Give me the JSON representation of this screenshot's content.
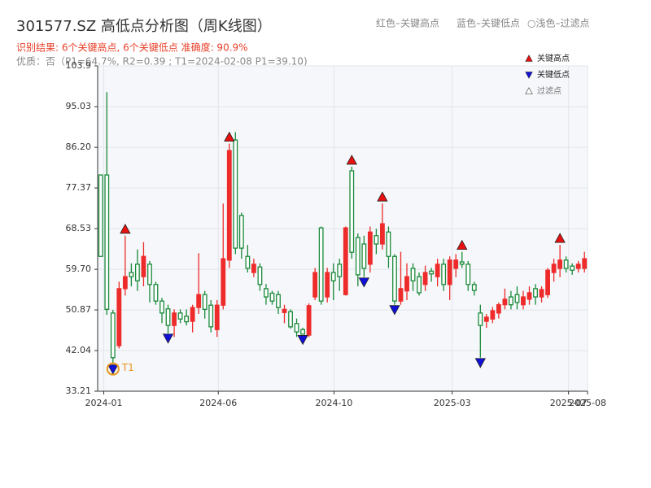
{
  "chart_data": {
    "type": "candlestick",
    "title": "301577.SZ 高低点分析图（周K线图）",
    "header_notes": [
      "红色–关键高点",
      "蓝色–关键低点",
      "○浅色–过滤点"
    ],
    "subtitle": "识别结果: 6个关键高点, 6个关键低点  准确度: 90.9%",
    "quality_note": "优质：否（P1=64.7%, R2=0.39 ; T1=2024-02-08 P1=39.10)",
    "legend": [
      "关键高点",
      "关键低点",
      "过滤点"
    ],
    "t1_label": "T1",
    "t1_index": 2,
    "up_color": "#ee2b2b",
    "down_color": "#1a8a3a",
    "high_marker_color": "#e81010",
    "low_marker_color": "#1010d8",
    "t1_color": "#e8951c",
    "open": [
      80.2,
      80.2,
      50.2,
      43.1,
      55.5,
      59.0,
      60.8,
      58.1,
      60.8,
      56.4,
      52.8,
      51.1,
      47.5,
      50.2,
      49.5,
      48.4,
      51.4,
      54.2,
      51.9,
      46.6,
      51.9,
      61.7,
      87.8,
      71.4,
      62.5,
      59.0,
      60.2,
      55.5,
      54.5,
      54.2,
      50.3,
      50.5,
      47.9,
      46.6,
      45.4,
      53.7,
      68.7,
      53.7,
      59.0,
      60.8,
      54.2,
      81.1,
      66.6,
      65.2,
      60.8,
      67.0,
      65.2,
      67.8,
      62.5,
      52.8,
      55.0,
      59.9,
      58.1,
      56.4,
      59.3,
      58.1,
      60.8,
      56.4,
      59.9,
      61.3,
      60.8,
      56.4,
      50.2,
      48.4,
      48.9,
      50.2,
      52.0,
      53.7,
      54.2,
      52.0,
      53.2,
      55.5,
      53.7,
      54.2,
      59.0,
      59.9,
      61.7,
      60.4,
      59.9,
      59.9
    ],
    "high": [
      80.2,
      98.2,
      50.9,
      57.0,
      67.0,
      61.0,
      64.0,
      65.6,
      61.5,
      57.0,
      53.5,
      52.0,
      51.0,
      51.0,
      51.0,
      52.0,
      63.2,
      55.0,
      53.0,
      53.0,
      74.0,
      87.0,
      89.5,
      72.0,
      65.0,
      62.0,
      61.0,
      56.5,
      55.0,
      55.0,
      52.0,
      51.0,
      49.0,
      47.0,
      52.3,
      60.0,
      69.0,
      60.0,
      61.0,
      62.0,
      69.0,
      82.0,
      67.5,
      67.0,
      69.0,
      68.5,
      74.0,
      69.0,
      63.0,
      63.5,
      61.0,
      61.0,
      59.0,
      60.5,
      60.0,
      62.0,
      62.0,
      62.5,
      63.0,
      63.5,
      61.5,
      57.0,
      52.0,
      50.0,
      51.5,
      52.5,
      55.5,
      55.0,
      56.0,
      55.0,
      56.0,
      56.5,
      56.0,
      60.0,
      62.0,
      65.0,
      62.5,
      61.0,
      61.5,
      63.5
    ],
    "low": [
      62.5,
      49.8,
      39.1,
      42.5,
      54.0,
      56.0,
      55.0,
      56.0,
      52.5,
      52.0,
      48.0,
      45.8,
      45.0,
      48.0,
      47.5,
      46.0,
      50.0,
      49.0,
      46.0,
      45.0,
      51.0,
      60.0,
      63.0,
      62.0,
      59.0,
      58.0,
      55.0,
      52.0,
      52.0,
      50.0,
      48.0,
      46.8,
      45.0,
      45.5,
      45.0,
      53.0,
      52.0,
      52.5,
      53.0,
      55.0,
      54.0,
      62.0,
      56.0,
      58.0,
      59.0,
      63.0,
      64.0,
      60.0,
      52.0,
      52.0,
      53.0,
      55.0,
      54.0,
      55.0,
      57.0,
      56.0,
      55.0,
      53.0,
      58.0,
      60.0,
      55.0,
      54.0,
      40.5,
      47.0,
      48.0,
      49.0,
      51.0,
      51.0,
      51.0,
      51.0,
      52.0,
      52.0,
      52.5,
      53.5,
      57.0,
      58.0,
      59.0,
      58.5,
      59.0,
      59.0
    ],
    "close": [
      62.5,
      51.0,
      40.5,
      55.5,
      58.1,
      58.1,
      57.2,
      62.5,
      56.4,
      52.8,
      50.2,
      47.5,
      50.2,
      48.9,
      48.3,
      51.4,
      54.2,
      51.0,
      47.2,
      51.9,
      62.0,
      85.5,
      64.3,
      64.3,
      59.9,
      60.8,
      56.4,
      53.7,
      52.8,
      51.4,
      51.0,
      47.2,
      46.1,
      45.6,
      51.8,
      59.0,
      52.8,
      59.0,
      57.2,
      58.1,
      68.7,
      63.4,
      58.5,
      59.9,
      67.8,
      65.2,
      69.6,
      62.5,
      52.8,
      55.5,
      58.1,
      57.2,
      54.6,
      59.0,
      58.7,
      60.8,
      56.4,
      61.7,
      61.7,
      60.8,
      56.4,
      55.1,
      47.5,
      49.3,
      50.7,
      52.0,
      53.2,
      52.0,
      52.5,
      53.7,
      54.6,
      53.7,
      55.3,
      59.5,
      60.8,
      61.7,
      59.9,
      59.5,
      60.8,
      62.0
    ],
    "key_highs": [
      4,
      21,
      41,
      46,
      59,
      75
    ],
    "key_lows": [
      2,
      11,
      33,
      43,
      48,
      62
    ],
    "xlim": [
      -0.5,
      79.5
    ],
    "xticks": [
      {
        "value": 0.5,
        "label": "2024-01"
      },
      {
        "value": 19.2,
        "label": "2024-06"
      },
      {
        "value": 38.1,
        "label": "2024-10"
      },
      {
        "value": 57.4,
        "label": "2025-03"
      },
      {
        "value": 76.4,
        "label": "2025-07"
      },
      {
        "value": 79.5,
        "label": "2025-08"
      }
    ],
    "ylim": [
      33.21,
      103.9
    ],
    "yticks": [
      33.21,
      42.04,
      50.87,
      {
        "value": 59.7,
        "label": "59.70"
      },
      68.53,
      77.37,
      {
        "value": 86.2,
        "label": "86.20"
      },
      95.03,
      103.9
    ],
    "grid": true
  }
}
